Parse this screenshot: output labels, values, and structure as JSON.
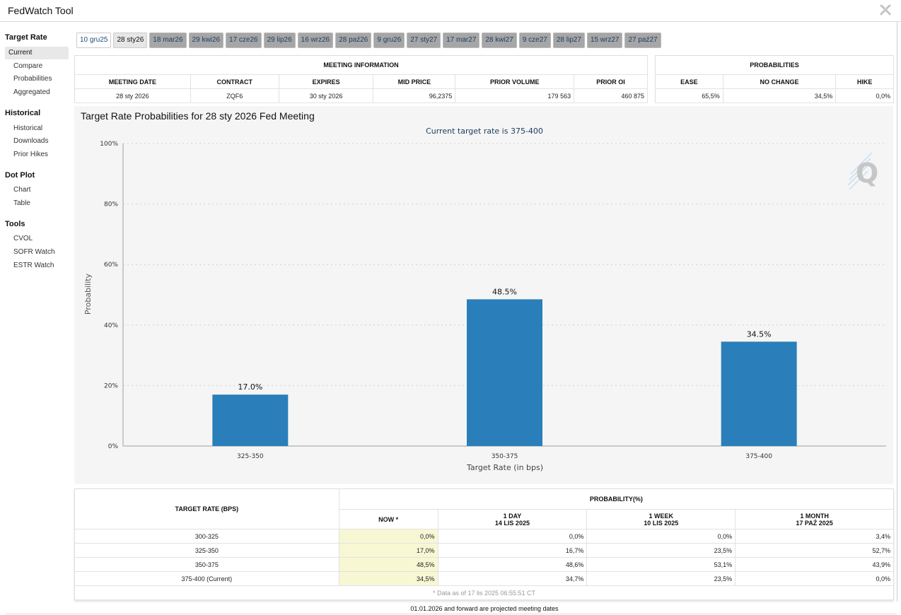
{
  "app": {
    "title": "FedWatch Tool"
  },
  "sidebar": {
    "sections": [
      {
        "title": "Target Rate",
        "items": [
          {
            "label": "Current",
            "active": true
          },
          {
            "label": "Compare"
          },
          {
            "label": "Probabilities"
          },
          {
            "label": "Aggregated"
          }
        ]
      },
      {
        "title": "Historical",
        "items": [
          {
            "label": "Historical"
          },
          {
            "label": "Downloads"
          },
          {
            "label": "Prior Hikes"
          }
        ]
      },
      {
        "title": "Dot Plot",
        "items": [
          {
            "label": "Chart"
          },
          {
            "label": "Table"
          }
        ]
      },
      {
        "title": "Tools",
        "items": [
          {
            "label": "CVOL"
          },
          {
            "label": "SOFR Watch"
          },
          {
            "label": "ESTR Watch"
          }
        ]
      }
    ]
  },
  "tabs": [
    "10 gru25",
    "28 sty26",
    "18 mar26",
    "29 kwi26",
    "17 cze26",
    "29 lip26",
    "16 wrz26",
    "28 paź26",
    "9 gru26",
    "27 sty27",
    "17 mar27",
    "28 kwi27",
    "9 cze27",
    "28 lip27",
    "15 wrz27",
    "27 paź27"
  ],
  "active_tab": 1,
  "meeting_info": {
    "heading": "MEETING INFORMATION",
    "headers": [
      "MEETING DATE",
      "CONTRACT",
      "EXPIRES",
      "MID PRICE",
      "PRIOR VOLUME",
      "PRIOR OI"
    ],
    "values": [
      "28 sty 2026",
      "ZQF6",
      "30 sty 2026",
      "96,2375",
      "179 563",
      "460 875"
    ]
  },
  "probabilities": {
    "heading": "PROBABILITIES",
    "headers": [
      "EASE",
      "NO CHANGE",
      "HIKE"
    ],
    "values": [
      "65,5%",
      "34,5%",
      "0,0%"
    ]
  },
  "chart": {
    "title": "Target Rate Probabilities for 28 sty 2026 Fed Meeting",
    "subtitle": "Current target rate is 375-400",
    "watermark": "Q",
    "colors": {
      "bar": "#2a7fba",
      "background": "#f5f5f5"
    }
  },
  "chart_data": {
    "type": "bar",
    "categories": [
      "325-350",
      "350-375",
      "375-400"
    ],
    "values": [
      17.0,
      48.5,
      34.5
    ],
    "data_labels": [
      "17.0%",
      "48.5%",
      "34.5%"
    ],
    "ylim": [
      0,
      100
    ],
    "yticks": [
      "0%",
      "20%",
      "40%",
      "60%",
      "80%",
      "100%"
    ],
    "title": "Target Rate Probabilities for 28 sty 2026 Fed Meeting",
    "subtitle": "Current target rate is 375-400",
    "xlabel": "Target Rate (in bps)",
    "ylabel": "Probability",
    "grid": true,
    "legend": "none"
  },
  "prob_table": {
    "col_target": "TARGET RATE (BPS)",
    "col_group": "PROBABILITY(%)",
    "cols": [
      {
        "line1": "NOW *",
        "line2": ""
      },
      {
        "line1": "1 DAY",
        "line2": "14 LIS 2025"
      },
      {
        "line1": "1 WEEK",
        "line2": "10 LIS 2025"
      },
      {
        "line1": "1 MONTH",
        "line2": "17 PAŹ 2025"
      }
    ],
    "rows": [
      {
        "rate": "300-325",
        "vals": [
          "0,0%",
          "0,0%",
          "0,0%",
          "3,4%"
        ]
      },
      {
        "rate": "325-350",
        "vals": [
          "17,0%",
          "16,7%",
          "23,5%",
          "52,7%"
        ]
      },
      {
        "rate": "350-375",
        "vals": [
          "48,5%",
          "48,6%",
          "53,1%",
          "43,9%"
        ]
      },
      {
        "rate": "375-400 (Current)",
        "vals": [
          "34,5%",
          "34,7%",
          "23,5%",
          "0,0%"
        ]
      }
    ],
    "footnote": "* Data as of 17 lis 2025 06:55:51 CT"
  },
  "projected_note": "01.01.2026 and forward are projected meeting dates"
}
